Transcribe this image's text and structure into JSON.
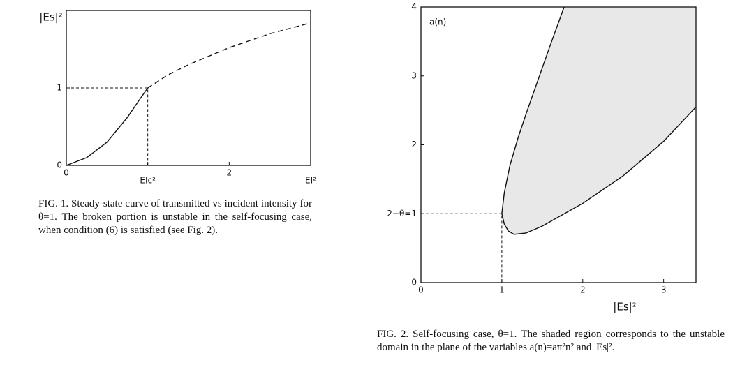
{
  "chart_data": [
    {
      "type": "line",
      "y_label": "|Es|²",
      "xlim": [
        0,
        3
      ],
      "ylim": [
        0,
        2
      ],
      "xticks": [
        0,
        {
          "value": 1,
          "label": "EIc²"
        },
        2,
        {
          "value": 3,
          "label": "EI²"
        }
      ],
      "yticks": [
        0,
        1
      ],
      "series": [
        {
          "color": "#111",
          "dashed": false,
          "x": [
            0,
            0.25,
            0.5,
            0.75,
            0.9,
            1
          ],
          "values": [
            0,
            0.1,
            0.3,
            0.62,
            0.85,
            1
          ]
        },
        {
          "color": "#111",
          "dashed": true,
          "x": [
            1,
            1.25,
            1.5,
            2,
            2.5,
            3
          ],
          "values": [
            1,
            1.17,
            1.3,
            1.52,
            1.7,
            1.84
          ]
        }
      ],
      "caption": "FIG. 1. Steady-state curve of transmitted vs incident intensity for θ=1. The broken portion is unstable in the self-focusing case, when condition (6) is satisfied (see Fig. 2)."
    },
    {
      "type": "line",
      "annotation": "a(n)",
      "x_label": "|Es|²",
      "xlim": [
        0,
        3.4
      ],
      "ylim": [
        0,
        4
      ],
      "xticks": [
        0,
        1,
        2,
        3
      ],
      "yticks": [
        0,
        {
          "value": 1,
          "label": "2−θ=1"
        },
        2,
        3,
        4
      ],
      "series": [
        {
          "color": "#111",
          "dashed": false,
          "x": [
            1,
            1.03,
            1.1,
            1.2,
            1.3,
            1.45,
            1.6,
            1.77
          ],
          "values": [
            1,
            1.3,
            1.7,
            2.1,
            2.45,
            2.95,
            3.45,
            4
          ]
        },
        {
          "color": "#111",
          "dashed": false,
          "x": [
            1,
            1.03,
            1.08,
            1.15,
            1.3,
            1.5,
            2,
            2.5,
            3,
            3.4
          ],
          "values": [
            1,
            0.85,
            0.75,
            0.7,
            0.72,
            0.82,
            1.15,
            1.55,
            2.05,
            2.55
          ]
        }
      ],
      "shade": "#e8e8e8",
      "caption": "FIG. 2. Self-focusing case, θ=1. The shaded region corresponds to the unstable domain in the plane of the variables a(n)=aπ²n² and |Es|²."
    }
  ]
}
